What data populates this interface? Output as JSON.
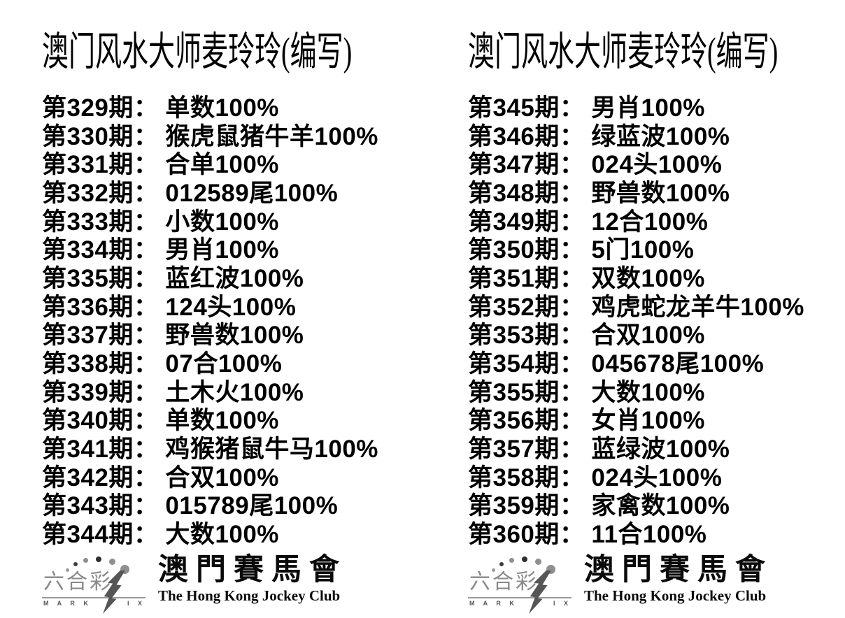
{
  "columns": [
    {
      "header": "澳门风水大师麦玲玲(编写)",
      "rows": [
        {
          "period": "第329期：",
          "prediction": "单数100%"
        },
        {
          "period": "第330期：",
          "prediction": "猴虎鼠猪牛羊100%"
        },
        {
          "period": "第331期：",
          "prediction": "合单100%"
        },
        {
          "period": "第332期：",
          "prediction": "012589尾100%"
        },
        {
          "period": "第333期：",
          "prediction": "小数100%"
        },
        {
          "period": "第334期：",
          "prediction": "男肖100%"
        },
        {
          "period": "第335期：",
          "prediction": "蓝红波100%"
        },
        {
          "period": "第336期：",
          "prediction": "124头100%"
        },
        {
          "period": "第337期：",
          "prediction": "野兽数100%"
        },
        {
          "period": "第338期：",
          "prediction": "07合100%"
        },
        {
          "period": "第339期：",
          "prediction": "土木火100%"
        },
        {
          "period": "第340期：",
          "prediction": "单数100%"
        },
        {
          "period": "第341期：",
          "prediction": "鸡猴猪鼠牛马100%"
        },
        {
          "period": "第342期：",
          "prediction": "合双100%"
        },
        {
          "period": "第343期：",
          "prediction": "015789尾100%"
        },
        {
          "period": "第344期：",
          "prediction": "大数100%"
        }
      ]
    },
    {
      "header": "澳门风水大师麦玲玲(编写)",
      "rows": [
        {
          "period": "第345期：",
          "prediction": "男肖100%"
        },
        {
          "period": "第346期：",
          "prediction": "绿蓝波100%"
        },
        {
          "period": "第347期：",
          "prediction": "024头100%"
        },
        {
          "period": "第348期：",
          "prediction": "野兽数100%"
        },
        {
          "period": "第349期：",
          "prediction": "12合100%"
        },
        {
          "period": "第350期：",
          "prediction": "5门100%"
        },
        {
          "period": "第351期：",
          "prediction": "双数100%"
        },
        {
          "period": "第352期：",
          "prediction": "鸡虎蛇龙羊牛100%"
        },
        {
          "period": "第353期：",
          "prediction": "合双100%"
        },
        {
          "period": "第354期：",
          "prediction": "045678尾100%"
        },
        {
          "period": "第355期：",
          "prediction": "大数100%"
        },
        {
          "period": "第356期：",
          "prediction": "女肖100%"
        },
        {
          "period": "第357期：",
          "prediction": "蓝绿波100%"
        },
        {
          "period": "第358期：",
          "prediction": "024头100%"
        },
        {
          "period": "第359期：",
          "prediction": "家禽数100%"
        },
        {
          "period": "第360期：",
          "prediction": "11合100%"
        }
      ]
    }
  ],
  "footer": {
    "logo": {
      "cn_name": "六合彩",
      "mark_left": "M A R K",
      "mark_right": "I X",
      "bolt_color": "#555555",
      "dots": [
        "#9a9a9a",
        "#3c3c3c",
        "#8f8f8f",
        "#2f2f2f",
        "#8f8f8f",
        "#8f8f8f"
      ]
    },
    "club_cn": "澳門賽馬會",
    "club_en": "The Hong Kong Jockey Club"
  }
}
